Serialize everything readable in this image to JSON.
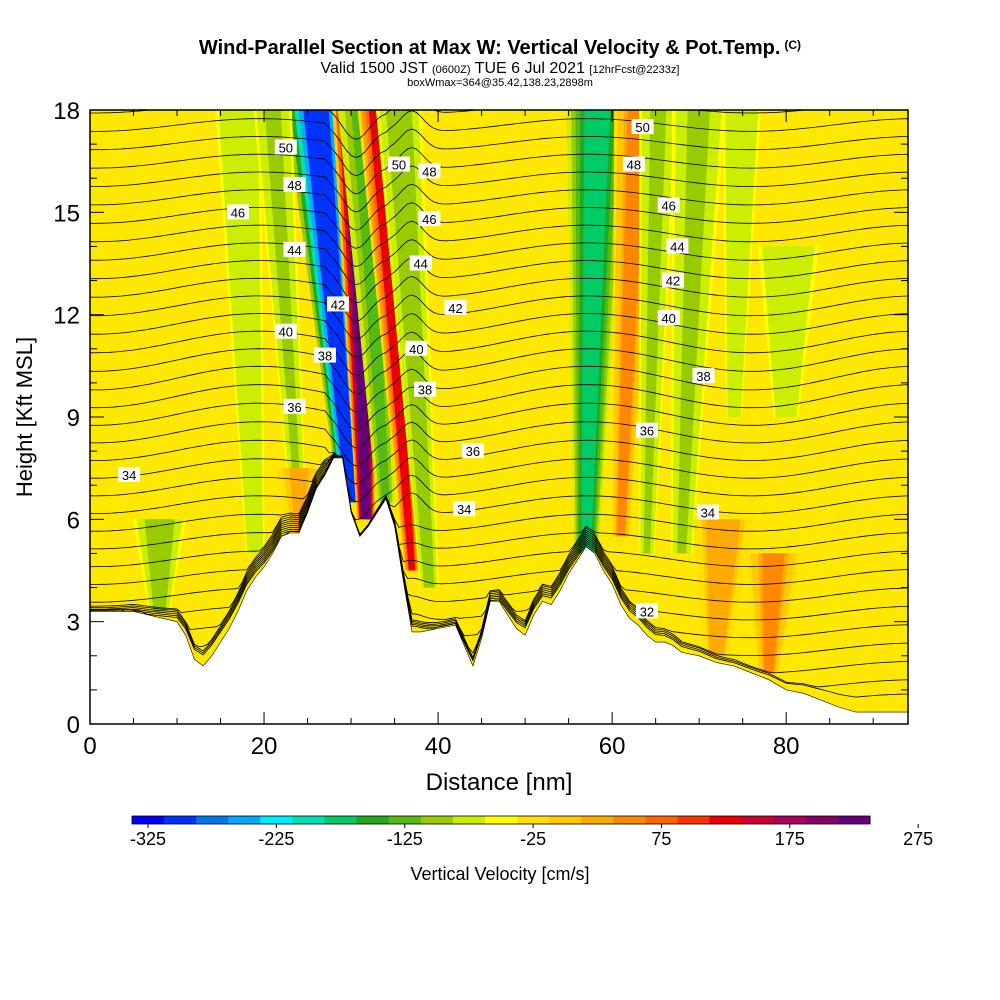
{
  "header": {
    "title": "Wind-Parallel Section at Max W: Vertical Velocity & Pot.Temp.",
    "title_suffix": "(C)",
    "valid_prefix": "Valid 1500 JST",
    "valid_zulu": "(0600Z)",
    "valid_date": "TUE 6 Jul 2021",
    "forecast_info": "[12hrFcst@2233z]",
    "boxinfo": "boxWmax=364@35.42,138.23,2898m"
  },
  "chart_data": {
    "type": "heatmap",
    "xlabel": "Distance [nm]",
    "ylabel": "Height [Kft MSL]",
    "xlim": [
      0,
      94
    ],
    "ylim": [
      0,
      18
    ],
    "x_ticks": [
      0,
      20,
      40,
      60,
      80
    ],
    "y_ticks": [
      0,
      3,
      6,
      9,
      12,
      15,
      18
    ],
    "fill_variable": "Vertical Velocity [cm/s]",
    "contour_variable": "Potential temperature (C)",
    "colorbar": {
      "label": "Vertical Velocity [cm/s]",
      "tick_labels": [
        "-325",
        "-225",
        "-125",
        "-25",
        "75",
        "175",
        "275"
      ],
      "colors": [
        "#0000ff",
        "#0033ff",
        "#0077ee",
        "#00aaff",
        "#00eeff",
        "#00e0b0",
        "#00cc66",
        "#22aa22",
        "#55bb11",
        "#99cc00",
        "#ccee00",
        "#ffff00",
        "#ffe000",
        "#ffc800",
        "#ffaa00",
        "#ff8800",
        "#ff6600",
        "#ff3300",
        "#ee0000",
        "#cc0033",
        "#aa0055",
        "#880066",
        "#660077"
      ]
    },
    "terrain": [
      [
        0,
        3.3
      ],
      [
        5,
        3.3
      ],
      [
        10,
        3.0
      ],
      [
        11,
        2.6
      ],
      [
        12,
        1.9
      ],
      [
        13,
        1.7
      ],
      [
        14,
        2.0
      ],
      [
        15,
        2.4
      ],
      [
        16,
        2.8
      ],
      [
        17,
        3.3
      ],
      [
        18,
        3.9
      ],
      [
        19,
        4.3
      ],
      [
        20,
        4.6
      ],
      [
        21,
        5.0
      ],
      [
        22,
        5.5
      ],
      [
        23,
        5.6
      ],
      [
        24,
        5.6
      ],
      [
        25,
        6.2
      ],
      [
        26,
        6.9
      ],
      [
        27,
        7.3
      ],
      [
        28,
        7.8
      ],
      [
        29,
        7.8
      ],
      [
        30,
        6.2
      ],
      [
        31,
        5.5
      ],
      [
        32,
        5.8
      ],
      [
        33,
        6.2
      ],
      [
        34,
        6.6
      ],
      [
        35,
        5.8
      ],
      [
        36,
        4.2
      ],
      [
        37,
        2.7
      ],
      [
        38,
        2.7
      ],
      [
        40,
        2.8
      ],
      [
        42,
        2.9
      ],
      [
        43,
        2.3
      ],
      [
        44,
        1.7
      ],
      [
        45,
        2.5
      ],
      [
        46,
        3.6
      ],
      [
        47,
        3.6
      ],
      [
        48,
        3.2
      ],
      [
        49,
        2.8
      ],
      [
        50,
        2.6
      ],
      [
        51,
        3.2
      ],
      [
        52,
        3.6
      ],
      [
        53,
        3.5
      ],
      [
        54,
        3.9
      ],
      [
        55,
        4.4
      ],
      [
        56,
        4.8
      ],
      [
        57,
        5.2
      ],
      [
        58,
        5.0
      ],
      [
        59,
        4.5
      ],
      [
        60,
        4.1
      ],
      [
        61,
        3.5
      ],
      [
        62,
        3.1
      ],
      [
        63,
        2.9
      ],
      [
        64,
        2.6
      ],
      [
        65,
        2.4
      ],
      [
        66,
        2.4
      ],
      [
        67,
        2.3
      ],
      [
        68,
        2.1
      ],
      [
        70,
        2.0
      ],
      [
        72,
        1.8
      ],
      [
        74,
        1.7
      ],
      [
        76,
        1.5
      ],
      [
        78,
        1.3
      ],
      [
        80,
        1.0
      ],
      [
        82,
        0.9
      ],
      [
        84,
        0.7
      ],
      [
        86,
        0.5
      ],
      [
        88,
        0.35
      ],
      [
        90,
        0.35
      ],
      [
        94,
        0.35
      ]
    ],
    "w_features": [
      {
        "x": 30,
        "y0": 6.5,
        "y1": 18,
        "tilt": -0.35,
        "width": 1.6,
        "w": -300
      },
      {
        "x": 31.7,
        "y0": 6.0,
        "y1": 18,
        "tilt": -0.1,
        "width": 1.2,
        "w": 364
      },
      {
        "x": 34,
        "y0": 6.5,
        "y1": 18,
        "tilt": -0.25,
        "width": 1.2,
        "w": -80
      },
      {
        "x": 37,
        "y0": 4.5,
        "y1": 18,
        "tilt": -0.3,
        "width": 1.0,
        "w": 200
      },
      {
        "x": 39,
        "y0": 4.0,
        "y1": 18,
        "tilt": -0.25,
        "width": 1.2,
        "w": -60
      },
      {
        "x": 19,
        "y0": 5.0,
        "y1": 18,
        "tilt": -0.15,
        "width": 1.2,
        "w": -40
      },
      {
        "x": 24,
        "y0": 6.0,
        "y1": 18,
        "tilt": -0.25,
        "width": 1.0,
        "w": -50
      },
      {
        "x": 57,
        "y0": 5.0,
        "y1": 18,
        "tilt": 0.1,
        "width": 1.6,
        "w": -140
      },
      {
        "x": 61,
        "y0": 5.5,
        "y1": 18,
        "tilt": 0.15,
        "width": 1.2,
        "w": 120
      },
      {
        "x": 64,
        "y0": 5.0,
        "y1": 18,
        "tilt": 0.1,
        "width": 1.0,
        "w": -50
      },
      {
        "x": 68,
        "y0": 5.0,
        "y1": 18,
        "tilt": 0.15,
        "width": 1.4,
        "w": -50
      },
      {
        "x": 74,
        "y0": 9.0,
        "y1": 18,
        "tilt": 0.1,
        "width": 1.0,
        "w": -40
      },
      {
        "x": 80,
        "y0": 9.0,
        "y1": 14,
        "tilt": 0.05,
        "width": 1.6,
        "w": -40
      },
      {
        "x": 72,
        "y0": 2.0,
        "y1": 6.0,
        "tilt": 0.2,
        "width": 1.6,
        "w": 100
      },
      {
        "x": 78,
        "y0": 1.5,
        "y1": 5.0,
        "tilt": 0.15,
        "width": 1.4,
        "w": 120
      },
      {
        "x": 8,
        "y0": 3.3,
        "y1": 6.0,
        "tilt": 0,
        "width": 1.4,
        "w": -60
      },
      {
        "x": 24,
        "y0": 5.6,
        "y1": 7.5,
        "tilt": 0,
        "width": 1.2,
        "w": 90
      }
    ],
    "contour_labels": [
      {
        "text": "50",
        "x": 22.5,
        "y": 16.9
      },
      {
        "text": "48",
        "x": 23.5,
        "y": 15.8
      },
      {
        "text": "46",
        "x": 17.0,
        "y": 15.0
      },
      {
        "text": "44",
        "x": 23.5,
        "y": 13.9
      },
      {
        "text": "42",
        "x": 28.5,
        "y": 12.3
      },
      {
        "text": "40",
        "x": 22.5,
        "y": 11.5
      },
      {
        "text": "38",
        "x": 27.0,
        "y": 10.8
      },
      {
        "text": "36",
        "x": 23.5,
        "y": 9.3
      },
      {
        "text": "34",
        "x": 4.5,
        "y": 7.3
      },
      {
        "text": "50",
        "x": 35.5,
        "y": 16.4
      },
      {
        "text": "48",
        "x": 39.0,
        "y": 16.2
      },
      {
        "text": "46",
        "x": 39.0,
        "y": 14.8
      },
      {
        "text": "44",
        "x": 38.0,
        "y": 13.5
      },
      {
        "text": "42",
        "x": 42.0,
        "y": 12.2
      },
      {
        "text": "40",
        "x": 37.5,
        "y": 11.0
      },
      {
        "text": "38",
        "x": 38.5,
        "y": 9.8
      },
      {
        "text": "36",
        "x": 44.0,
        "y": 8.0
      },
      {
        "text": "34",
        "x": 43.0,
        "y": 6.3
      },
      {
        "text": "50",
        "x": 63.5,
        "y": 17.5
      },
      {
        "text": "48",
        "x": 62.5,
        "y": 16.4
      },
      {
        "text": "46",
        "x": 66.5,
        "y": 15.2
      },
      {
        "text": "44",
        "x": 67.5,
        "y": 14.0
      },
      {
        "text": "42",
        "x": 67.0,
        "y": 13.0
      },
      {
        "text": "40",
        "x": 66.5,
        "y": 11.9
      },
      {
        "text": "38",
        "x": 70.5,
        "y": 10.2
      },
      {
        "text": "36",
        "x": 64.0,
        "y": 8.6
      },
      {
        "text": "34",
        "x": 71.0,
        "y": 6.2
      },
      {
        "text": "32",
        "x": 64.0,
        "y": 3.3
      }
    ]
  }
}
